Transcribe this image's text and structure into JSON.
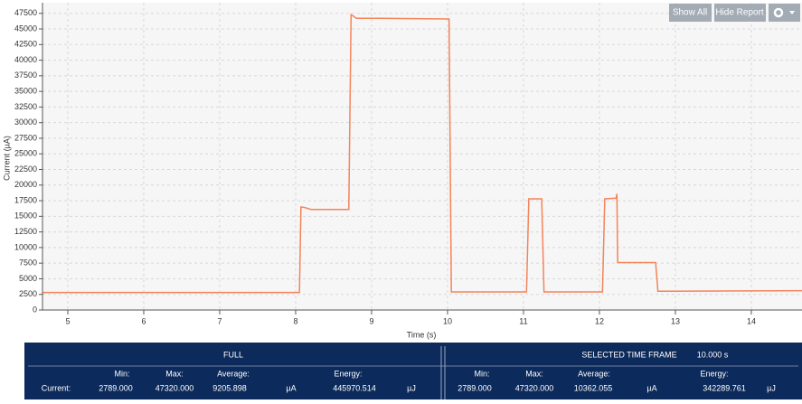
{
  "chart_data": {
    "type": "line",
    "xlabel": "Time (s)",
    "ylabel": "Current (µA)",
    "x": [
      4.667,
      8.05,
      8.07,
      8.12,
      8.2,
      8.7,
      8.73,
      8.8,
      9.1,
      10.02,
      10.05,
      11.04,
      11.07,
      11.24,
      11.27,
      12.04,
      12.07,
      12.22,
      12.23,
      12.24,
      12.74,
      12.77,
      14.667
    ],
    "series": [
      {
        "color": "#f4845a",
        "values": [
          2800,
          2800,
          16500,
          16400,
          16100,
          16100,
          47300,
          46700,
          46700,
          46600,
          2900,
          2900,
          17800,
          17800,
          2900,
          2900,
          17800,
          17900,
          18600,
          7600,
          7600,
          3000,
          3100
        ]
      }
    ],
    "xlim": [
      4.667,
      14.667
    ],
    "xticks": [
      5,
      6,
      7,
      8,
      9,
      10,
      11,
      12,
      13,
      14
    ],
    "ylim": [
      0,
      49200
    ],
    "yticks": [
      0,
      2500,
      5000,
      7500,
      10000,
      12500,
      15000,
      17500,
      20000,
      22500,
      25000,
      27500,
      30000,
      32500,
      35000,
      37500,
      40000,
      42500,
      45000,
      47500
    ],
    "grid": true
  },
  "toolbar": {
    "show_all": "Show All",
    "hide_report": "Hide Report"
  },
  "report": {
    "full": {
      "title": "FULL",
      "headers": [
        "Min:",
        "Max:",
        "Average:",
        "Energy:"
      ],
      "row_label": "Current:",
      "values": [
        "2789.000",
        "47320.000",
        "9205.898",
        "445970.514"
      ],
      "units": [
        "µA",
        "µJ"
      ]
    },
    "selected": {
      "title": "SELECTED TIME FRAME",
      "duration": "10.000 s",
      "headers": [
        "Min:",
        "Max:",
        "Average:",
        "Energy:"
      ],
      "values": [
        "2789.000",
        "47320.000",
        "10362.055",
        "342289.761"
      ],
      "units": [
        "µA",
        "µJ"
      ]
    }
  }
}
